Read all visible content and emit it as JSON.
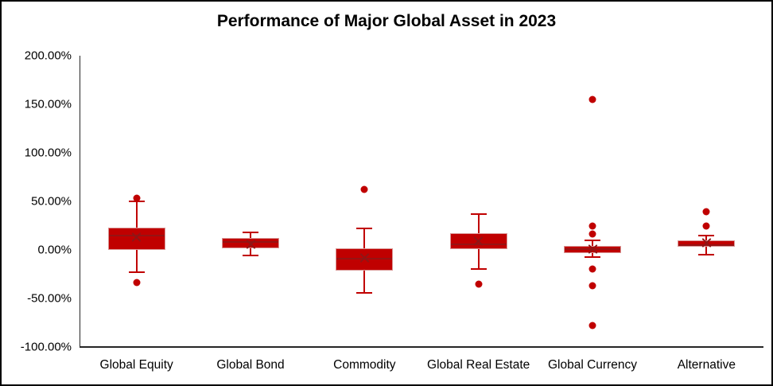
{
  "chart_data": {
    "type": "box",
    "title": "Performance of Major Global Asset in 2023",
    "legend": "none",
    "gridlines": "off",
    "unit": "%",
    "categories": [
      "Global Equity",
      "Global Bond",
      "Commodity",
      "Global Real Estate",
      "Global Currency",
      "Alternative"
    ],
    "y_axis": {
      "min": -100,
      "max": 200,
      "step": 50,
      "ticks": [
        {
          "label": "200.00%",
          "value": 200
        },
        {
          "label": "150.00%",
          "value": 150
        },
        {
          "label": "100.00%",
          "value": 100
        },
        {
          "label": "50.00%",
          "value": 50
        },
        {
          "label": "0.00%",
          "value": 0
        },
        {
          "label": "-50.00%",
          "value": -50
        },
        {
          "label": "-100.00%",
          "value": -100
        }
      ]
    },
    "series": [
      {
        "category": "Global Equity",
        "whisker_high": 50,
        "q3": 23,
        "median": 15,
        "mean": 13,
        "q1": 0,
        "whisker_low": -23,
        "outliers": [
          53,
          -34
        ]
      },
      {
        "category": "Global Bond",
        "whisker_high": 18,
        "q3": 12,
        "median": 8,
        "mean": 6,
        "q1": 2,
        "whisker_low": -6,
        "outliers": []
      },
      {
        "category": "Commodity",
        "whisker_high": 22,
        "q3": 2,
        "median": -9,
        "mean": -8,
        "q1": -21,
        "whisker_low": -44,
        "outliers": [
          62
        ]
      },
      {
        "category": "Global Real Estate",
        "whisker_high": 37,
        "q3": 17,
        "median": 6,
        "mean": 9,
        "q1": 1,
        "whisker_low": -20,
        "outliers": [
          -35
        ]
      },
      {
        "category": "Global Currency",
        "whisker_high": 10,
        "q3": 4,
        "median": 1,
        "mean": 1,
        "q1": -3,
        "whisker_low": -7,
        "outliers": [
          155,
          25,
          16,
          -20,
          -37,
          -78
        ]
      },
      {
        "category": "Alternative",
        "whisker_high": 15,
        "q3": 10,
        "median": 5,
        "mean": 7,
        "q1": 3,
        "whisker_low": -5,
        "outliers": [
          39,
          25
        ]
      }
    ],
    "colors": {
      "box_fill": "#C00000",
      "box_border": "#D99796",
      "marker": "#8E1616",
      "axis": "#262626",
      "text": "#000000"
    }
  }
}
